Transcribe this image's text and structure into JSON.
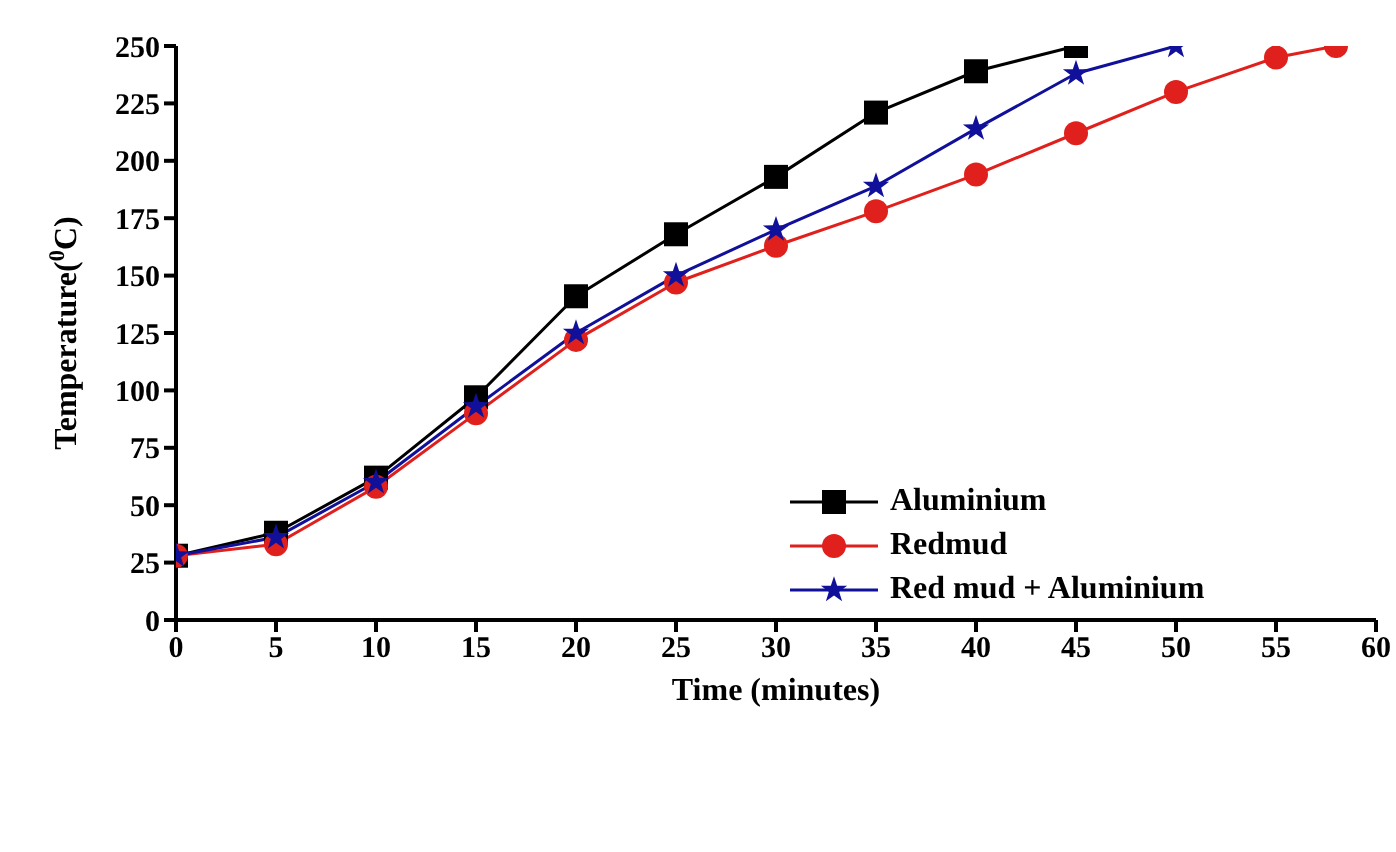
{
  "chart_data": {
    "type": "line",
    "xlabel": "Time (minutes)",
    "ylabel": "Temperature($^{0}$C)",
    "xlim": [
      0,
      60
    ],
    "xticks": [
      0,
      5,
      10,
      15,
      20,
      25,
      30,
      35,
      40,
      45,
      50,
      55,
      60
    ],
    "ylim": [
      0,
      250
    ],
    "yticks": [
      0,
      25,
      50,
      75,
      100,
      125,
      150,
      175,
      200,
      225,
      250
    ],
    "grid": false,
    "legend": "right",
    "series": [
      {
        "name": "Aluminium",
        "color": "#000000",
        "marker": "square",
        "x": [
          0,
          5,
          10,
          15,
          20,
          25,
          30,
          35,
          40,
          45
        ],
        "values": [
          28,
          38,
          62,
          97,
          141,
          168,
          193,
          221,
          239,
          250
        ]
      },
      {
        "name": "Redmud",
        "color": "#e0201c",
        "marker": "circle",
        "x": [
          0,
          5,
          10,
          15,
          20,
          25,
          30,
          35,
          40,
          45,
          50,
          55,
          58
        ],
        "values": [
          28,
          33,
          58,
          90,
          122,
          147,
          163,
          178,
          194,
          212,
          230,
          245,
          250
        ]
      },
      {
        "name": "Red mud + Aluminium",
        "color": "#10109a",
        "marker": "star",
        "x": [
          0,
          5,
          10,
          15,
          20,
          25,
          30,
          35,
          40,
          45,
          50
        ],
        "values": [
          28,
          36,
          60,
          93,
          125,
          150,
          170,
          189,
          214,
          238,
          250
        ]
      }
    ]
  }
}
